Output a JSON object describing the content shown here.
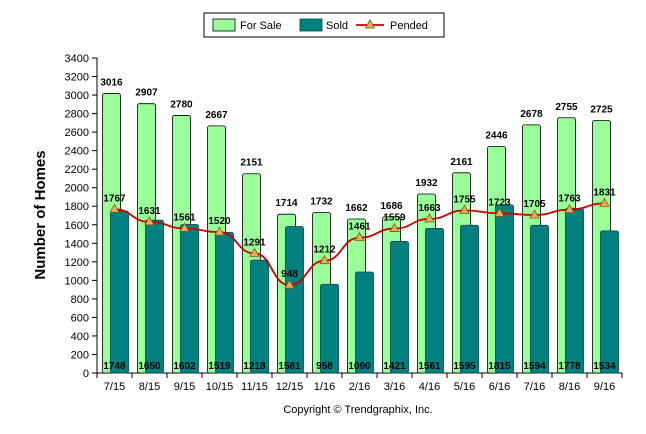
{
  "chart_data": {
    "type": "bar",
    "categories": [
      "7/15",
      "8/15",
      "9/15",
      "10/15",
      "11/15",
      "12/15",
      "1/16",
      "2/16",
      "3/16",
      "4/16",
      "5/16",
      "6/16",
      "7/16",
      "8/16",
      "9/16"
    ],
    "series": [
      {
        "name": "For Sale",
        "kind": "bar",
        "color": "#99ff99",
        "values": [
          3016,
          2907,
          2780,
          2667,
          2151,
          1714,
          1732,
          1662,
          1686,
          1932,
          2161,
          2446,
          2678,
          2755,
          2725
        ]
      },
      {
        "name": "Sold",
        "kind": "bar",
        "color": "#008080",
        "values": [
          1748,
          1650,
          1602,
          1519,
          1218,
          1581,
          958,
          1090,
          1421,
          1561,
          1595,
          1815,
          1594,
          1778,
          1534
        ]
      },
      {
        "name": "Pended",
        "kind": "line",
        "color": "#cc0000",
        "marker_color": "#e0b060",
        "values": [
          1767,
          1631,
          1561,
          1520,
          1291,
          948,
          1212,
          1461,
          1559,
          1663,
          1755,
          1723,
          1705,
          1763,
          1831
        ]
      }
    ],
    "ylabel": "Number of Homes",
    "ylim": [
      0,
      3400
    ],
    "yticks": [
      0,
      200,
      400,
      600,
      800,
      1000,
      1200,
      1400,
      1600,
      1800,
      2000,
      2200,
      2400,
      2600,
      2800,
      3000,
      3200,
      3400
    ],
    "legend_position": "top-center",
    "grid": false
  },
  "footer": {
    "copyright": "Copyright © Trendgraphix, Inc."
  }
}
